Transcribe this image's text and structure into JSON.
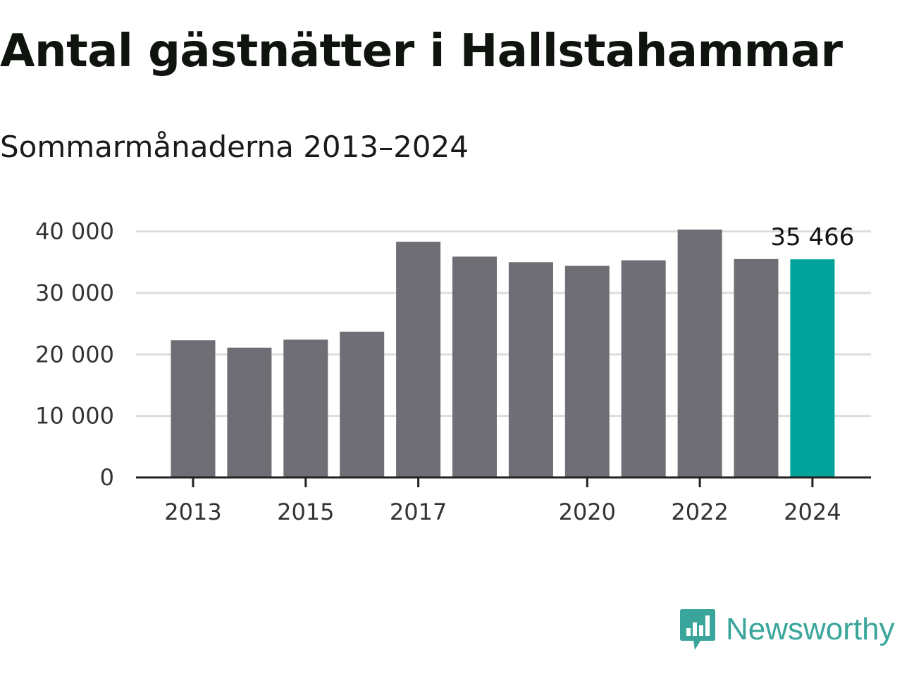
{
  "header": {
    "title": "Antal gästnätter i Hallstahammar",
    "subtitle": "Sommarmånaderna 2013–2024"
  },
  "brand": {
    "name": "Newsworthy",
    "icon": "bar-chart-speech-bubble-icon",
    "color": "#3aa59b"
  },
  "colors": {
    "bar": "#6f6e74",
    "highlight": "#00a39a",
    "grid": "#dddddd",
    "axis": "#222222"
  },
  "chart_data": {
    "type": "bar",
    "categories": [
      "2013",
      "2014",
      "2015",
      "2016",
      "2017",
      "2018",
      "2019",
      "2020",
      "2021",
      "2022",
      "2023",
      "2024"
    ],
    "values": [
      22300,
      21100,
      22400,
      23700,
      38300,
      35900,
      35000,
      34400,
      35300,
      40300,
      35500,
      35466
    ],
    "highlight_index": 11,
    "x_tick_labels": [
      "2013",
      "2015",
      "2017",
      "2020",
      "2022",
      "2024"
    ],
    "y_ticks": [
      0,
      10000,
      20000,
      30000,
      40000
    ],
    "y_tick_labels": [
      "0",
      "10 000",
      "20 000",
      "30 000",
      "40 000"
    ],
    "annotations": [
      {
        "index": 11,
        "text": "35 466"
      }
    ],
    "ylim": [
      0,
      40300
    ],
    "grid": true,
    "legend": "none"
  }
}
